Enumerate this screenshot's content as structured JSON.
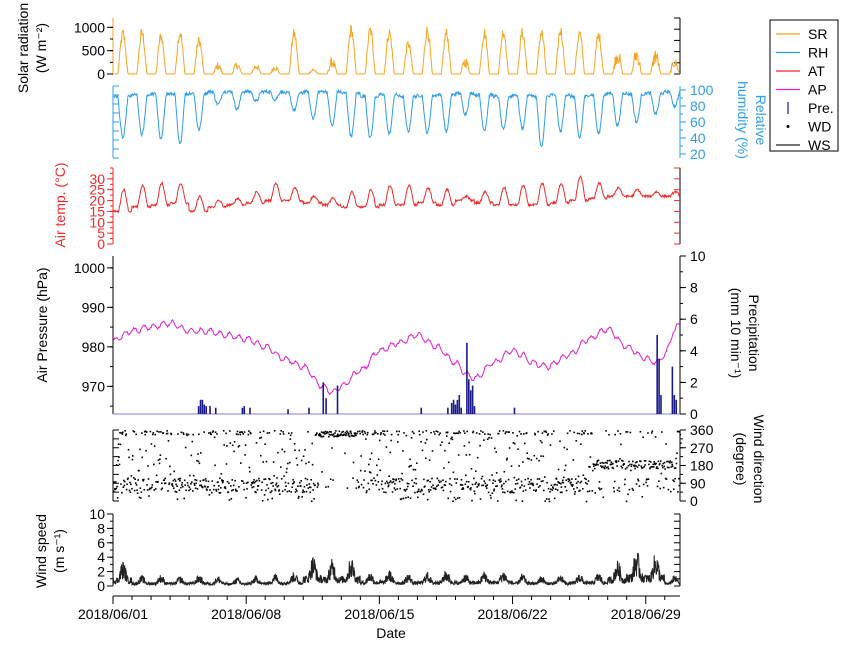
{
  "chart_data": {
    "type": "line",
    "x_axis": {
      "label": "Date",
      "start": "2018/06/01",
      "end": "2018/06/30",
      "range_days": [
        0,
        29.8
      ],
      "ticks": [
        {
          "day": 0,
          "label": "2018/06/01"
        },
        {
          "day": 7,
          "label": "2018/06/08"
        },
        {
          "day": 14,
          "label": "2018/06/15"
        },
        {
          "day": 21,
          "label": "2018/06/22"
        },
        {
          "day": 28,
          "label": "2018/06/29"
        }
      ]
    },
    "legend": {
      "position": "right",
      "items": [
        {
          "label": "SR",
          "kind": "line",
          "color": "#f5a524"
        },
        {
          "label": "RH",
          "kind": "line",
          "color": "#2f9ee8"
        },
        {
          "label": "AT",
          "kind": "line",
          "color": "#ee2a2a"
        },
        {
          "label": "AP",
          "kind": "line",
          "color": "#e020c8"
        },
        {
          "label": "Pre.",
          "kind": "bar",
          "color": "#1a1a8a"
        },
        {
          "label": "WD",
          "kind": "dot",
          "color": "#000000"
        },
        {
          "label": "WS",
          "kind": "line",
          "color": "#222222"
        }
      ]
    },
    "panels": [
      {
        "id": "solar",
        "series": "SR",
        "ylabel": [
          "Solar radiation",
          "(W m⁻²)"
        ],
        "ylim": [
          0,
          1200
        ],
        "ticks": [
          0,
          500,
          1000
        ],
        "daily_peak": [
          980,
          1000,
          920,
          1000,
          820,
          260,
          280,
          250,
          210,
          980,
          130,
          380,
          1080,
          1060,
          1010,
          740,
          1060,
          990,
          390,
          1000,
          1040,
          1000,
          1010,
          1060,
          990,
          940,
          620,
          620,
          580,
          360
        ]
      },
      {
        "id": "rh",
        "series": "RH",
        "ylabel": [
          "Relative",
          "humidity (%)"
        ],
        "ylim": [
          15,
          105
        ],
        "ticks": [
          20,
          40,
          60,
          80,
          100
        ],
        "daily_min": [
          40,
          44,
          38,
          32,
          50,
          82,
          76,
          86,
          88,
          75,
          65,
          55,
          42,
          40,
          45,
          48,
          46,
          48,
          70,
          50,
          50,
          52,
          28,
          48,
          40,
          45,
          55,
          60,
          70,
          80
        ],
        "daily_max": [
          92,
          94,
          95,
          95,
          96,
          98,
          98,
          98,
          98,
          96,
          98,
          98,
          96,
          92,
          94,
          92,
          93,
          94,
          96,
          94,
          92,
          94,
          92,
          94,
          92,
          94,
          96,
          95,
          96,
          98
        ]
      },
      {
        "id": "at",
        "series": "AT",
        "ylabel": [
          "Air temp. (°C)"
        ],
        "ylim": [
          0,
          35
        ],
        "ticks": [
          0,
          5,
          10,
          15,
          20,
          25,
          30
        ],
        "daily_min": [
          15,
          17,
          18,
          19,
          15,
          17,
          18,
          19,
          20,
          20,
          19,
          18,
          17,
          17,
          18,
          18,
          19,
          18,
          20,
          19,
          18,
          18,
          18,
          19,
          20,
          21,
          22,
          22,
          22,
          22
        ],
        "daily_max": [
          25,
          27,
          28,
          28,
          22,
          20,
          21,
          24,
          28,
          26,
          22,
          21,
          24,
          25,
          27,
          27,
          26,
          25,
          22,
          24,
          26,
          27,
          28,
          28,
          31,
          28,
          26,
          25,
          24,
          24
        ]
      },
      {
        "id": "ap",
        "series": "AP",
        "ylabel": [
          "Air Pressure (hPa)"
        ],
        "ylim": [
          963,
          1003
        ],
        "ticks": [
          970,
          980,
          990,
          1000
        ],
        "knots": [
          [
            0,
            981.5
          ],
          [
            1,
            984
          ],
          [
            2,
            985
          ],
          [
            3,
            986
          ],
          [
            4,
            984
          ],
          [
            5,
            984
          ],
          [
            6,
            983
          ],
          [
            7,
            982
          ],
          [
            8,
            980
          ],
          [
            9,
            977
          ],
          [
            10,
            975
          ],
          [
            11,
            970
          ],
          [
            11.5,
            968.5
          ],
          [
            12,
            970
          ],
          [
            13,
            974
          ],
          [
            14,
            979
          ],
          [
            15,
            981
          ],
          [
            16,
            983
          ],
          [
            17,
            980
          ],
          [
            18,
            976
          ],
          [
            18.6,
            973
          ],
          [
            19,
            972
          ],
          [
            20,
            976
          ],
          [
            21,
            979
          ],
          [
            21.5,
            978
          ],
          [
            22,
            976
          ],
          [
            22.8,
            975
          ],
          [
            24,
            978
          ],
          [
            25,
            982
          ],
          [
            26,
            984.5
          ],
          [
            27,
            980
          ],
          [
            28,
            977
          ],
          [
            28.6,
            976
          ],
          [
            29,
            978
          ],
          [
            29.5,
            984
          ],
          [
            29.8,
            986
          ]
        ]
      },
      {
        "id": "pre",
        "series": "Pre.",
        "ylabel": [
          "Precipitation",
          "(mm 10 min⁻¹)"
        ],
        "ylim": [
          0,
          10
        ],
        "ticks": [
          0,
          2,
          4,
          6,
          8,
          10
        ],
        "bars": [
          [
            4.5,
            0.5
          ],
          [
            4.6,
            0.9
          ],
          [
            4.7,
            0.9
          ],
          [
            4.8,
            0.6
          ],
          [
            4.9,
            0.5
          ],
          [
            5.1,
            0.5
          ],
          [
            5.4,
            0.4
          ],
          [
            6.8,
            0.4
          ],
          [
            6.9,
            0.5
          ],
          [
            7.2,
            0.4
          ],
          [
            9.2,
            0.3
          ],
          [
            10.3,
            0.4
          ],
          [
            11.05,
            2.0
          ],
          [
            11.2,
            1.0
          ],
          [
            11.8,
            1.8
          ],
          [
            16.2,
            0.4
          ],
          [
            17.6,
            0.4
          ],
          [
            17.8,
            0.7
          ],
          [
            17.9,
            0.9
          ],
          [
            18.0,
            0.6
          ],
          [
            18.1,
            0.9
          ],
          [
            18.2,
            1.2
          ],
          [
            18.3,
            0.4
          ],
          [
            18.6,
            4.5
          ],
          [
            18.7,
            2.2
          ],
          [
            18.8,
            1.5
          ],
          [
            18.9,
            1.8
          ],
          [
            19.0,
            0.5
          ],
          [
            21.1,
            0.4
          ],
          [
            28.6,
            5.0
          ],
          [
            28.7,
            3.5
          ],
          [
            28.8,
            1.2
          ],
          [
            29.4,
            3.0
          ],
          [
            29.5,
            1.2
          ],
          [
            29.6,
            0.9
          ]
        ]
      },
      {
        "id": "wd",
        "series": "WD",
        "ylabel": [
          "Wind direction",
          "(degree)"
        ],
        "ylim": [
          0,
          360
        ],
        "ticks": [
          0,
          90,
          180,
          270,
          360
        ]
      },
      {
        "id": "ws",
        "series": "WS",
        "ylabel": [
          "Wind speed",
          "(m s⁻¹)"
        ],
        "ylim": [
          0,
          10
        ],
        "ticks": [
          0,
          2,
          4,
          6,
          8,
          10
        ],
        "daily_max": [
          3.5,
          1.5,
          1.6,
          1.4,
          1.6,
          1.4,
          1.2,
          1.5,
          1.8,
          2.0,
          4.3,
          3.8,
          4.1,
          2.0,
          2.2,
          1.8,
          2.0,
          2.3,
          1.8,
          2.1,
          2.2,
          1.7,
          1.5,
          1.6,
          1.8,
          1.9,
          3.6,
          5.1,
          4.7,
          1.5
        ]
      }
    ]
  }
}
